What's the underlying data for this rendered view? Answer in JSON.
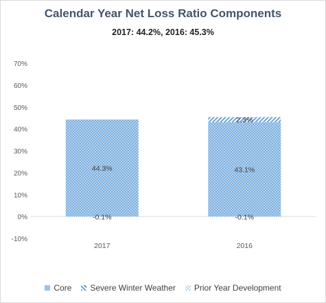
{
  "chart_data": {
    "type": "bar",
    "stacked": true,
    "title": "Calendar Year Net Loss Ratio Components",
    "subtitle": "2017: 44.2%, 2016: 45.3%",
    "categories": [
      "2017",
      "2016"
    ],
    "series": [
      {
        "name": "Core",
        "values": [
          44.3,
          43.1
        ],
        "labels": [
          "44.3%",
          "43.1%"
        ],
        "color": "#9dc3e6",
        "pattern": "dotted-checker"
      },
      {
        "name": "Severe Winter Weather",
        "values": [
          0,
          2.3
        ],
        "labels": [
          "",
          "2.3%"
        ],
        "color": "#9dc3e6",
        "pattern": "diagonal-stripes"
      },
      {
        "name": "Prior Year Development",
        "values": [
          -0.1,
          -0.1
        ],
        "labels": [
          "-0.1%",
          "-0.1%"
        ],
        "color": "#9dc3e6",
        "pattern": "fine-dots"
      }
    ],
    "y_ticks": [
      "70%",
      "60%",
      "50%",
      "40%",
      "30%",
      "20%",
      "10%",
      "0%",
      "-10%"
    ],
    "ylim": [
      -10,
      70
    ],
    "y_step": 10,
    "grid": false,
    "legend_position": "bottom"
  },
  "colors": {
    "title": "#44546a",
    "axis_text": "#595959",
    "axis_line": "#d9d9d9",
    "bar_fill": "#9dc3e6",
    "bar_pattern": "#5b9bd5"
  }
}
